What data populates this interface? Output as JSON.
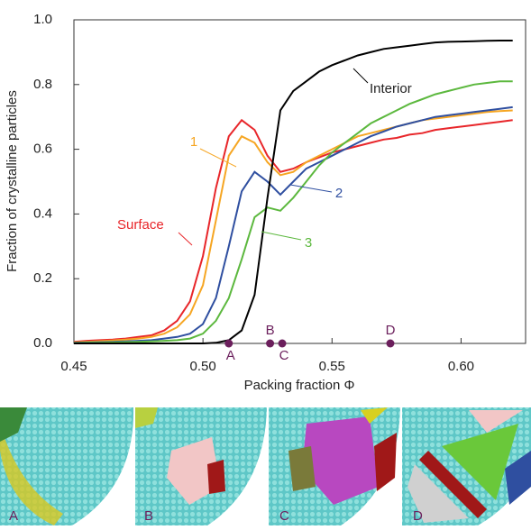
{
  "chart_data": {
    "type": "line",
    "xlabel": "Packing fraction Φ",
    "ylabel": "Fraction of crystalline particles",
    "xlim": [
      0.45,
      0.625
    ],
    "ylim": [
      0,
      1
    ],
    "xticks": [
      0.45,
      {
        "value": 0.5,
        "label": "0.50"
      },
      0.55,
      {
        "value": 0.6,
        "label": "0.60"
      }
    ],
    "yticks": [
      {
        "value": 0,
        "label": "0.0"
      },
      {
        "value": 0.2,
        "label": "0.2"
      },
      {
        "value": 0.4,
        "label": "0.4"
      },
      {
        "value": 0.6,
        "label": "0.6"
      },
      {
        "value": 0.8,
        "label": "0.8"
      },
      {
        "value": 1,
        "label": "1.0"
      }
    ],
    "x": [
      0.45,
      0.455,
      0.46,
      0.465,
      0.47,
      0.475,
      0.48,
      0.485,
      0.49,
      0.495,
      0.5,
      0.505,
      0.51,
      0.515,
      0.52,
      0.525,
      0.53,
      0.535,
      0.54,
      0.545,
      0.55,
      0.555,
      0.56,
      0.565,
      0.57,
      0.575,
      0.58,
      0.585,
      0.59,
      0.595,
      0.6,
      0.605,
      0.61,
      0.615,
      0.62
    ],
    "series": [
      {
        "name": "Surface",
        "color": "#e8262a",
        "values": [
          0.005,
          0.008,
          0.01,
          0.012,
          0.015,
          0.02,
          0.025,
          0.04,
          0.07,
          0.13,
          0.27,
          0.48,
          0.64,
          0.69,
          0.66,
          0.58,
          0.53,
          0.54,
          0.56,
          0.575,
          0.59,
          0.6,
          0.61,
          0.62,
          0.63,
          0.635,
          0.645,
          0.65,
          0.66,
          0.665,
          0.67,
          0.675,
          0.68,
          0.685,
          0.69
        ]
      },
      {
        "name": "1",
        "color": "#f6a623",
        "values": [
          0.003,
          0.005,
          0.007,
          0.009,
          0.012,
          0.015,
          0.02,
          0.03,
          0.05,
          0.09,
          0.18,
          0.38,
          0.58,
          0.64,
          0.62,
          0.56,
          0.52,
          0.53,
          0.56,
          0.58,
          0.6,
          0.62,
          0.64,
          0.65,
          0.66,
          0.67,
          0.68,
          0.69,
          0.695,
          0.7,
          0.705,
          0.71,
          0.715,
          0.718,
          0.72
        ]
      },
      {
        "name": "2",
        "color": "#2f4fa0",
        "values": [
          0.002,
          0.003,
          0.004,
          0.005,
          0.006,
          0.008,
          0.01,
          0.015,
          0.02,
          0.03,
          0.06,
          0.14,
          0.3,
          0.47,
          0.53,
          0.5,
          0.46,
          0.5,
          0.54,
          0.56,
          0.58,
          0.6,
          0.62,
          0.64,
          0.655,
          0.67,
          0.68,
          0.69,
          0.7,
          0.705,
          0.71,
          0.715,
          0.72,
          0.725,
          0.73
        ]
      },
      {
        "name": "3",
        "color": "#5cb83e",
        "values": [
          0.001,
          0.002,
          0.002,
          0.003,
          0.004,
          0.005,
          0.006,
          0.008,
          0.01,
          0.015,
          0.03,
          0.07,
          0.14,
          0.26,
          0.39,
          0.42,
          0.41,
          0.45,
          0.5,
          0.55,
          0.59,
          0.62,
          0.65,
          0.68,
          0.7,
          0.72,
          0.74,
          0.755,
          0.77,
          0.78,
          0.79,
          0.8,
          0.805,
          0.81,
          0.81
        ]
      },
      {
        "name": "Interior",
        "color": "#000000",
        "values": [
          0,
          0,
          0,
          0,
          0,
          0,
          0,
          0,
          0,
          0,
          0,
          0.002,
          0.01,
          0.04,
          0.15,
          0.45,
          0.72,
          0.78,
          0.81,
          0.84,
          0.86,
          0.875,
          0.89,
          0.9,
          0.91,
          0.915,
          0.92,
          0.925,
          0.93,
          0.932,
          0.933,
          0.934,
          0.935,
          0.936,
          0.936
        ]
      }
    ],
    "markers": [
      {
        "label": "A",
        "x": 0.51
      },
      {
        "label": "B",
        "x": 0.526
      },
      {
        "label": "C",
        "x": 0.5307
      },
      {
        "label": "D",
        "x": 0.5726
      }
    ],
    "marker_color": "#6b1f5c"
  }
}
